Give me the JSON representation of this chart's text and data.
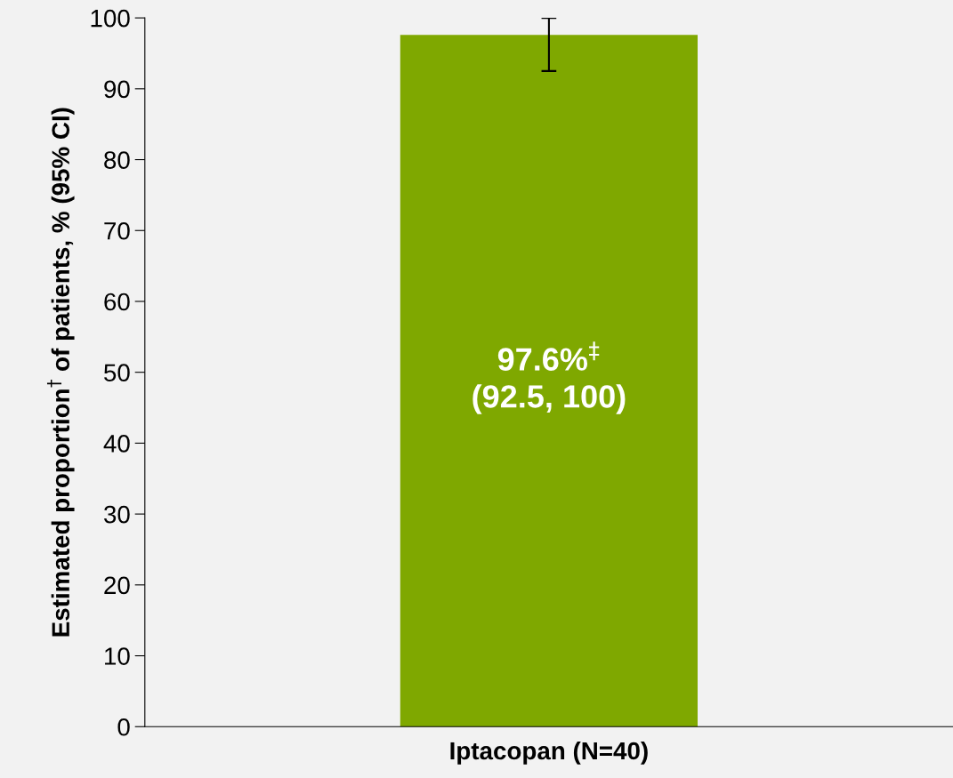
{
  "chart_data": {
    "type": "bar",
    "ylabel": "Estimated proportion$^{†}$ of patients, % (95% CI)",
    "categories": [
      "Iptacopan (N=40)"
    ],
    "series": [
      {
        "color": "#7fa800",
        "values": [
          97.6
        ],
        "errors": [
          [
            92.5,
            100
          ]
        ],
        "value_labels": [
          "97.6%$^{‡}$\n(92.5, 100)"
        ]
      }
    ],
    "ylim": [
      0,
      100
    ],
    "yticks": [
      0,
      10,
      20,
      30,
      40,
      50,
      60,
      70,
      80,
      90,
      100
    ],
    "grid": false,
    "legend": false
  }
}
